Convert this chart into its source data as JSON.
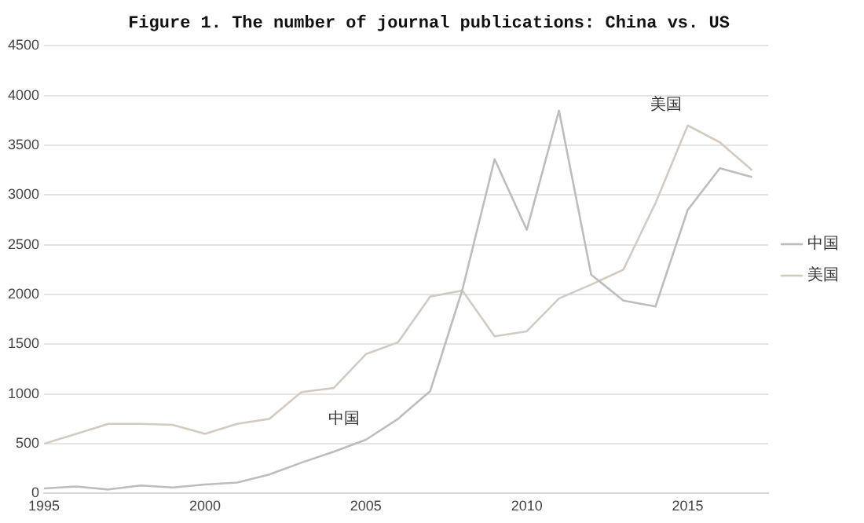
{
  "chart_data": {
    "type": "line",
    "title": "Figure 1. The number of journal publications: China vs. US",
    "x": [
      1995,
      1996,
      1997,
      1998,
      1999,
      2000,
      2001,
      2002,
      2003,
      2004,
      2005,
      2006,
      2007,
      2008,
      2009,
      2010,
      2011,
      2012,
      2013,
      2014,
      2015,
      2016,
      2017
    ],
    "series": [
      {
        "name": "中国",
        "color": "#bdbdbd",
        "values": [
          50,
          70,
          40,
          80,
          60,
          90,
          110,
          190,
          310,
          420,
          540,
          750,
          1030,
          2050,
          3360,
          2650,
          3850,
          2200,
          1940,
          1880,
          2850,
          3270,
          3180
        ]
      },
      {
        "name": "美国",
        "color": "#d2cbc4",
        "values": [
          500,
          600,
          700,
          700,
          690,
          600,
          700,
          750,
          1020,
          1060,
          1400,
          1520,
          1980,
          2040,
          1580,
          1630,
          1960,
          2100,
          2250,
          2920,
          3700,
          3530,
          3250
        ]
      }
    ],
    "xlim": [
      1995,
      2017.5
    ],
    "xticks": [
      1995,
      2000,
      2005,
      2010,
      2015
    ],
    "ylim": [
      0,
      4500
    ],
    "yticks": [
      0,
      500,
      1000,
      1500,
      2000,
      2500,
      3000,
      3500,
      4000,
      4500
    ],
    "grid": "y",
    "legend": "right",
    "marker": "none",
    "line_style": "solid",
    "annotations": [
      {
        "text": "中国",
        "x": 2005,
        "y": 540
      },
      {
        "text": "美国",
        "x": 2015,
        "y": 3700
      }
    ]
  }
}
